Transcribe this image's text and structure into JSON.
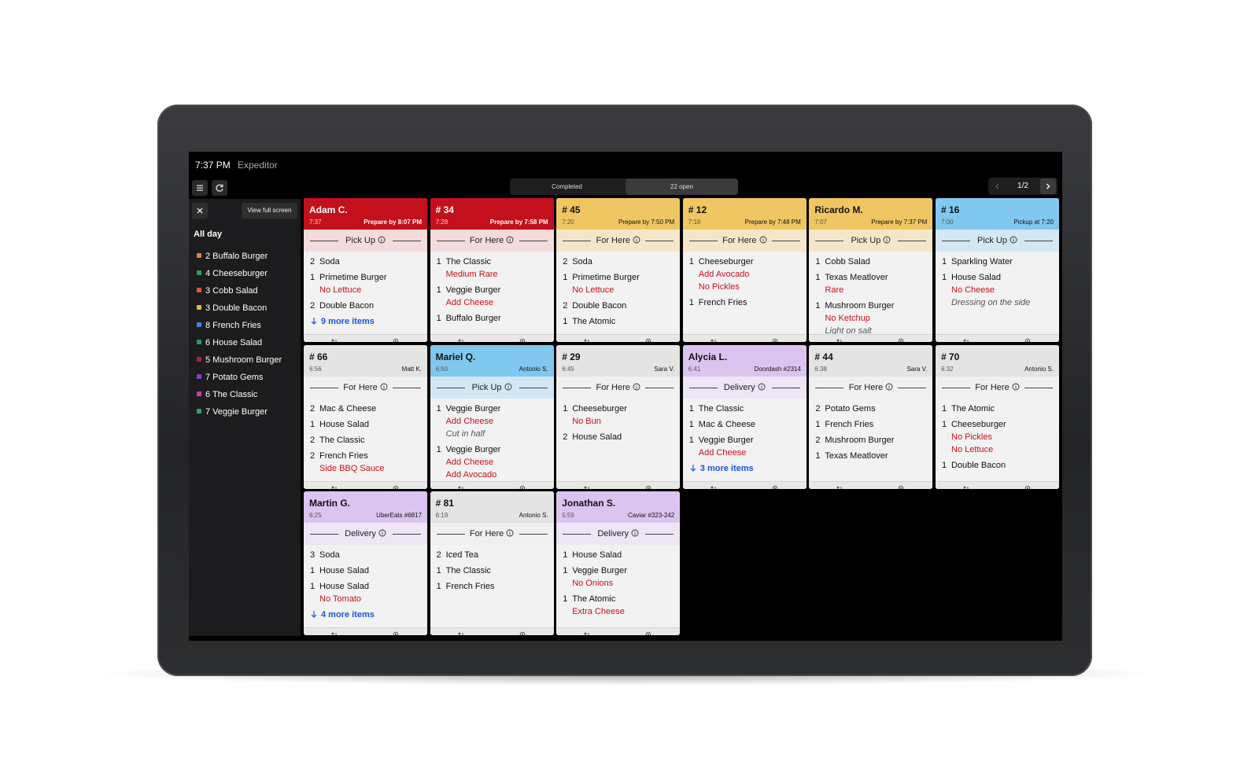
{
  "header": {
    "time": "7:37 PM",
    "title": "Expeditor"
  },
  "tabs": [
    "Completed",
    "22 open"
  ],
  "pager": "1/2",
  "sidebar": {
    "button": "View full screen",
    "heading": "All day",
    "items": [
      {
        "text": "2 Buffalo Burger",
        "color": "#e8833a"
      },
      {
        "text": "4 Cheeseburger",
        "color": "#2e9a5e"
      },
      {
        "text": "3 Cobb Salad",
        "color": "#e0553a"
      },
      {
        "text": "3 Double Bacon",
        "color": "#e8b730"
      },
      {
        "text": "8 French Fries",
        "color": "#3a86e0"
      },
      {
        "text": "6 House Salad",
        "color": "#2e9a5e"
      },
      {
        "text": "5 Mushroom Burger",
        "color": "#b0203a"
      },
      {
        "text": "7 Potato Gems",
        "color": "#8a3ad0"
      },
      {
        "text": "6 The Classic",
        "color": "#d03aa0"
      },
      {
        "text": "7 Veggie Burger",
        "color": "#2ea07a"
      }
    ]
  },
  "tickets": [
    {
      "name": "Adam C.",
      "time": "7:37",
      "info": "Prepare by 8:07 PM",
      "color": "#c3101c",
      "mode": "Pick Up",
      "items": [
        {
          "qty": 2,
          "name": "Soda"
        },
        {
          "qty": 1,
          "name": "Primetime Burger",
          "mods": [
            "No Lettuce"
          ]
        },
        {
          "qty": 2,
          "name": "Double Bacon"
        }
      ],
      "more": "9 more items"
    },
    {
      "name": "# 34",
      "time": "7:28",
      "info": "Prepare by 7:58 PM",
      "color": "#c3101c",
      "mode": "For Here",
      "items": [
        {
          "qty": 1,
          "name": "The Classic",
          "mods": [
            "Medium Rare"
          ]
        },
        {
          "qty": 1,
          "name": "Veggie Burger",
          "mods": [
            "Add Cheese"
          ]
        },
        {
          "qty": 1,
          "name": "Buffalo Burger"
        }
      ]
    },
    {
      "name": "# 45",
      "time": "7:20",
      "info": "Prepare by 7:50 PM",
      "color": "#f0c662",
      "mode": "For Here",
      "items": [
        {
          "qty": 2,
          "name": "Soda"
        },
        {
          "qty": 1,
          "name": "Primetime Burger",
          "mods": [
            "No Lettuce"
          ]
        },
        {
          "qty": 2,
          "name": "Double Bacon"
        },
        {
          "qty": 1,
          "name": "The Atomic"
        }
      ]
    },
    {
      "name": "# 12",
      "time": "7:18",
      "info": "Prepare by 7:48 PM",
      "color": "#f0c662",
      "mode": "For Here",
      "items": [
        {
          "qty": 1,
          "name": "Cheeseburger",
          "mods": [
            "Add Avocado",
            "No Pickles"
          ]
        },
        {
          "qty": 1,
          "name": "French Fries"
        }
      ]
    },
    {
      "name": "Ricardo M.",
      "time": "7:07",
      "info": "Prepare by 7:37 PM",
      "color": "#f0c662",
      "mode": "Pick Up",
      "items": [
        {
          "qty": 1,
          "name": "Cobb Salad"
        },
        {
          "qty": 1,
          "name": "Texas Meatlover",
          "mods": [
            "Rare"
          ]
        },
        {
          "qty": 1,
          "name": "Mushroom Burger",
          "mods": [
            "No Ketchup"
          ],
          "notes": [
            "Light on salt"
          ]
        }
      ]
    },
    {
      "name": "# 16",
      "time": "7:00",
      "info": "Pickup at 7:20",
      "color": "#80c8f0",
      "mode": "Pick Up",
      "items": [
        {
          "qty": 1,
          "name": "Sparkling Water"
        },
        {
          "qty": 1,
          "name": "House Salad",
          "mods": [
            "No Cheese"
          ],
          "notes": [
            "Dressing on the side"
          ]
        }
      ]
    },
    {
      "name": "# 66",
      "time": "6:56",
      "info": "Matt K.",
      "color": "#e4e4e4",
      "mode": "For Here",
      "items": [
        {
          "qty": 2,
          "name": "Mac & Cheese"
        },
        {
          "qty": 1,
          "name": "House Salad"
        },
        {
          "qty": 2,
          "name": "The Classic"
        },
        {
          "qty": 2,
          "name": "French Fries",
          "mods": [
            "Side BBQ Sauce"
          ]
        }
      ]
    },
    {
      "name": "Mariel Q.",
      "time": "6:50",
      "info": "Antonio S.",
      "color": "#80c8f0",
      "mode": "Pick Up",
      "items": [
        {
          "qty": 1,
          "name": "Veggie Burger",
          "mods": [
            "Add Cheese"
          ],
          "notes": [
            "Cut in half"
          ]
        },
        {
          "qty": 1,
          "name": "Veggie Burger",
          "mods": [
            "Add Cheese",
            "Add Avocado"
          ]
        }
      ]
    },
    {
      "name": "# 29",
      "time": "6:45",
      "info": "Sara V.",
      "color": "#e4e4e4",
      "mode": "For Here",
      "items": [
        {
          "qty": 1,
          "name": "Cheeseburger",
          "mods": [
            "No Bun"
          ]
        },
        {
          "qty": 2,
          "name": "House Salad"
        }
      ]
    },
    {
      "name": "Alycia L.",
      "time": "6:41",
      "info": "Doordash #2314",
      "color": "#dcc4f0",
      "mode": "Delivery",
      "items": [
        {
          "qty": 1,
          "name": "The Classic"
        },
        {
          "qty": 1,
          "name": "Mac & Cheese"
        },
        {
          "qty": 1,
          "name": "Veggie Burger",
          "mods": [
            "Add Cheese"
          ]
        }
      ],
      "more": "3 more items"
    },
    {
      "name": "# 44",
      "time": "6:38",
      "info": "Sara V.",
      "color": "#e4e4e4",
      "mode": "For Here",
      "items": [
        {
          "qty": 2,
          "name": "Potato Gems"
        },
        {
          "qty": 1,
          "name": "French Fries"
        },
        {
          "qty": 2,
          "name": "Mushroom Burger"
        },
        {
          "qty": 1,
          "name": "Texas Meatlover"
        }
      ]
    },
    {
      "name": "# 70",
      "time": "6:32",
      "info": "Antonio S.",
      "color": "#e4e4e4",
      "mode": "For Here",
      "items": [
        {
          "qty": 1,
          "name": "The Atomic"
        },
        {
          "qty": 1,
          "name": "Cheeseburger",
          "mods": [
            "No Pickles",
            "No Lettuce"
          ]
        },
        {
          "qty": 1,
          "name": "Double Bacon"
        }
      ]
    },
    {
      "name": "Martin G.",
      "time": "6:25",
      "info": "UberEats #6817",
      "color": "#dcc4f0",
      "mode": "Delivery",
      "items": [
        {
          "qty": 3,
          "name": "Soda"
        },
        {
          "qty": 1,
          "name": "House Salad"
        },
        {
          "qty": 1,
          "name": "House Salad",
          "mods": [
            "No Tomato"
          ]
        }
      ],
      "more": "4 more items"
    },
    {
      "name": "# 81",
      "time": "6:19",
      "info": "Antonio S.",
      "color": "#e4e4e4",
      "mode": "For Here",
      "items": [
        {
          "qty": 2,
          "name": "Iced Tea"
        },
        {
          "qty": 1,
          "name": "The Classic"
        },
        {
          "qty": 1,
          "name": "French Fries"
        }
      ]
    },
    {
      "name": "Jonathan S.",
      "time": "5:59",
      "info": "Caviar #323-242",
      "color": "#dcc4f0",
      "mode": "Delivery",
      "items": [
        {
          "qty": 1,
          "name": "House Salad"
        },
        {
          "qty": 1,
          "name": "Veggie Burger",
          "mods": [
            "No Onions"
          ]
        },
        {
          "qty": 1,
          "name": "The Atomic",
          "mods": [
            "Extra Cheese"
          ]
        }
      ]
    }
  ]
}
